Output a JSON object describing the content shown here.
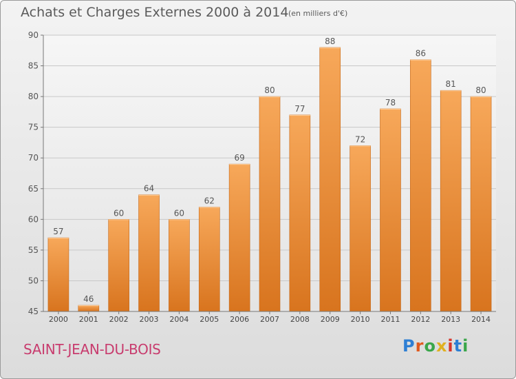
{
  "page": {
    "title": "Achats et Charges Externes 2000 à 2014",
    "unit_note": "(en milliers d'€)",
    "place": "SAINT-JEAN-DU-BOIS",
    "logo": {
      "text": "Proxiti",
      "letter_colors": [
        "#2e7fd4",
        "#e05a1e",
        "#3aa64a",
        "#e0b020",
        "#d8352a",
        "#2e7fd4",
        "#3aa64a"
      ]
    }
  },
  "chart_data": {
    "type": "bar",
    "title": "Achats et Charges Externes 2000 à 2014",
    "subtitle": "(en milliers d'€)",
    "xlabel": "",
    "ylabel": "",
    "categories": [
      "2000",
      "2001",
      "2002",
      "2003",
      "2004",
      "2005",
      "2006",
      "2007",
      "2008",
      "2009",
      "2010",
      "2011",
      "2012",
      "2013",
      "2014"
    ],
    "values": [
      57,
      46,
      60,
      64,
      60,
      62,
      69,
      80,
      77,
      88,
      72,
      78,
      86,
      81,
      80
    ],
    "data_labels": [
      "57",
      "46",
      "60",
      "64",
      "60",
      "62",
      "69",
      "80",
      "77",
      "88",
      "72",
      "78",
      "86",
      "81",
      "80"
    ],
    "ylim": [
      45,
      90
    ],
    "yticks": [
      45,
      50,
      55,
      60,
      65,
      70,
      75,
      80,
      85,
      90
    ],
    "grid": true,
    "legend": "none",
    "bar_color_top": "#f7a85a",
    "bar_color_bottom": "#d8741e"
  }
}
